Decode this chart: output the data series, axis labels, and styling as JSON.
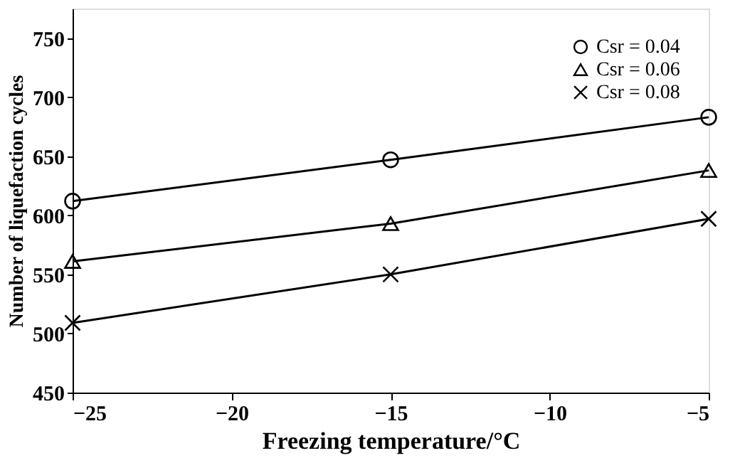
{
  "chart_data": {
    "type": "line",
    "xlabel": "Freezing temperature/°C",
    "ylabel": "Number of liquefaction cycles",
    "x": [
      -25,
      -15,
      -5
    ],
    "series": [
      {
        "name": "Csr = 0.04",
        "color": "#000000",
        "marker": "circle",
        "values": [
          612,
          647,
          683
        ]
      },
      {
        "name": "Csr = 0.06",
        "color": "#000000",
        "marker": "triangle",
        "values": [
          561,
          593,
          638
        ]
      },
      {
        "name": "Csr = 0.08",
        "color": "#000000",
        "marker": "cross",
        "values": [
          509,
          550,
          597
        ]
      }
    ],
    "xlim": [
      -25,
      -5
    ],
    "xticks": [
      -25,
      -20,
      -15,
      -10,
      -5
    ],
    "ylim": [
      450,
      775
    ],
    "yticks": [
      450,
      500,
      550,
      600,
      650,
      700,
      750
    ],
    "grid": false,
    "legend": "top right",
    "line_style": "solid"
  }
}
